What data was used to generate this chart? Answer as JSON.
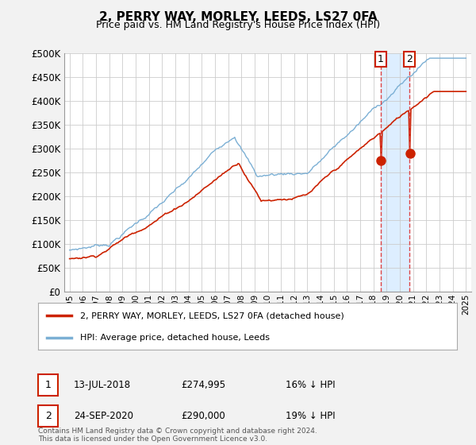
{
  "title": "2, PERRY WAY, MORLEY, LEEDS, LS27 0FA",
  "subtitle": "Price paid vs. HM Land Registry's House Price Index (HPI)",
  "legend_line1": "2, PERRY WAY, MORLEY, LEEDS, LS27 0FA (detached house)",
  "legend_line2": "HPI: Average price, detached house, Leeds",
  "annotation1_date": "13-JUL-2018",
  "annotation1_price": "£274,995",
  "annotation1_hpi": "16% ↓ HPI",
  "annotation2_date": "24-SEP-2020",
  "annotation2_price": "£290,000",
  "annotation2_hpi": "19% ↓ HPI",
  "footnote": "Contains HM Land Registry data © Crown copyright and database right 2024.\nThis data is licensed under the Open Government Licence v3.0.",
  "hpi_color": "#7bafd4",
  "price_color": "#cc2200",
  "vline_color": "#dd4444",
  "shade_color": "#ddeeff",
  "yticks": [
    0,
    50000,
    100000,
    150000,
    200000,
    250000,
    300000,
    350000,
    400000,
    450000,
    500000
  ],
  "background_color": "#f2f2f2",
  "plot_background": "#ffffff",
  "sale1_year": 2018.542,
  "sale2_year": 2020.729,
  "sale1_price": 274995,
  "sale2_price": 290000
}
